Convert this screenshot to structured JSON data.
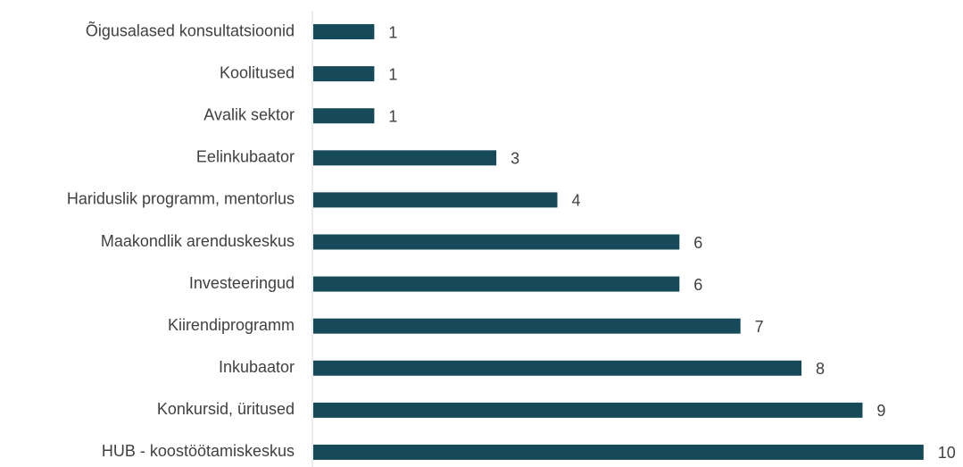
{
  "chart_data": {
    "type": "bar",
    "orientation": "horizontal",
    "categories": [
      "Õigusalased konsultatsioonid",
      "Koolitused",
      "Avalik sektor",
      "Eelinkubaator",
      "Hariduslik programm, mentorlus",
      "Maakondlik arenduskeskus",
      "Investeeringud",
      "Kiirendiprogramm",
      "Inkubaator",
      "Konkursid, üritused",
      "HUB - koostöötamiskeskus"
    ],
    "values": [
      1,
      1,
      1,
      3,
      4,
      6,
      6,
      7,
      8,
      9,
      10
    ],
    "color": "#174a59",
    "xlim": [
      0,
      10.5
    ]
  }
}
